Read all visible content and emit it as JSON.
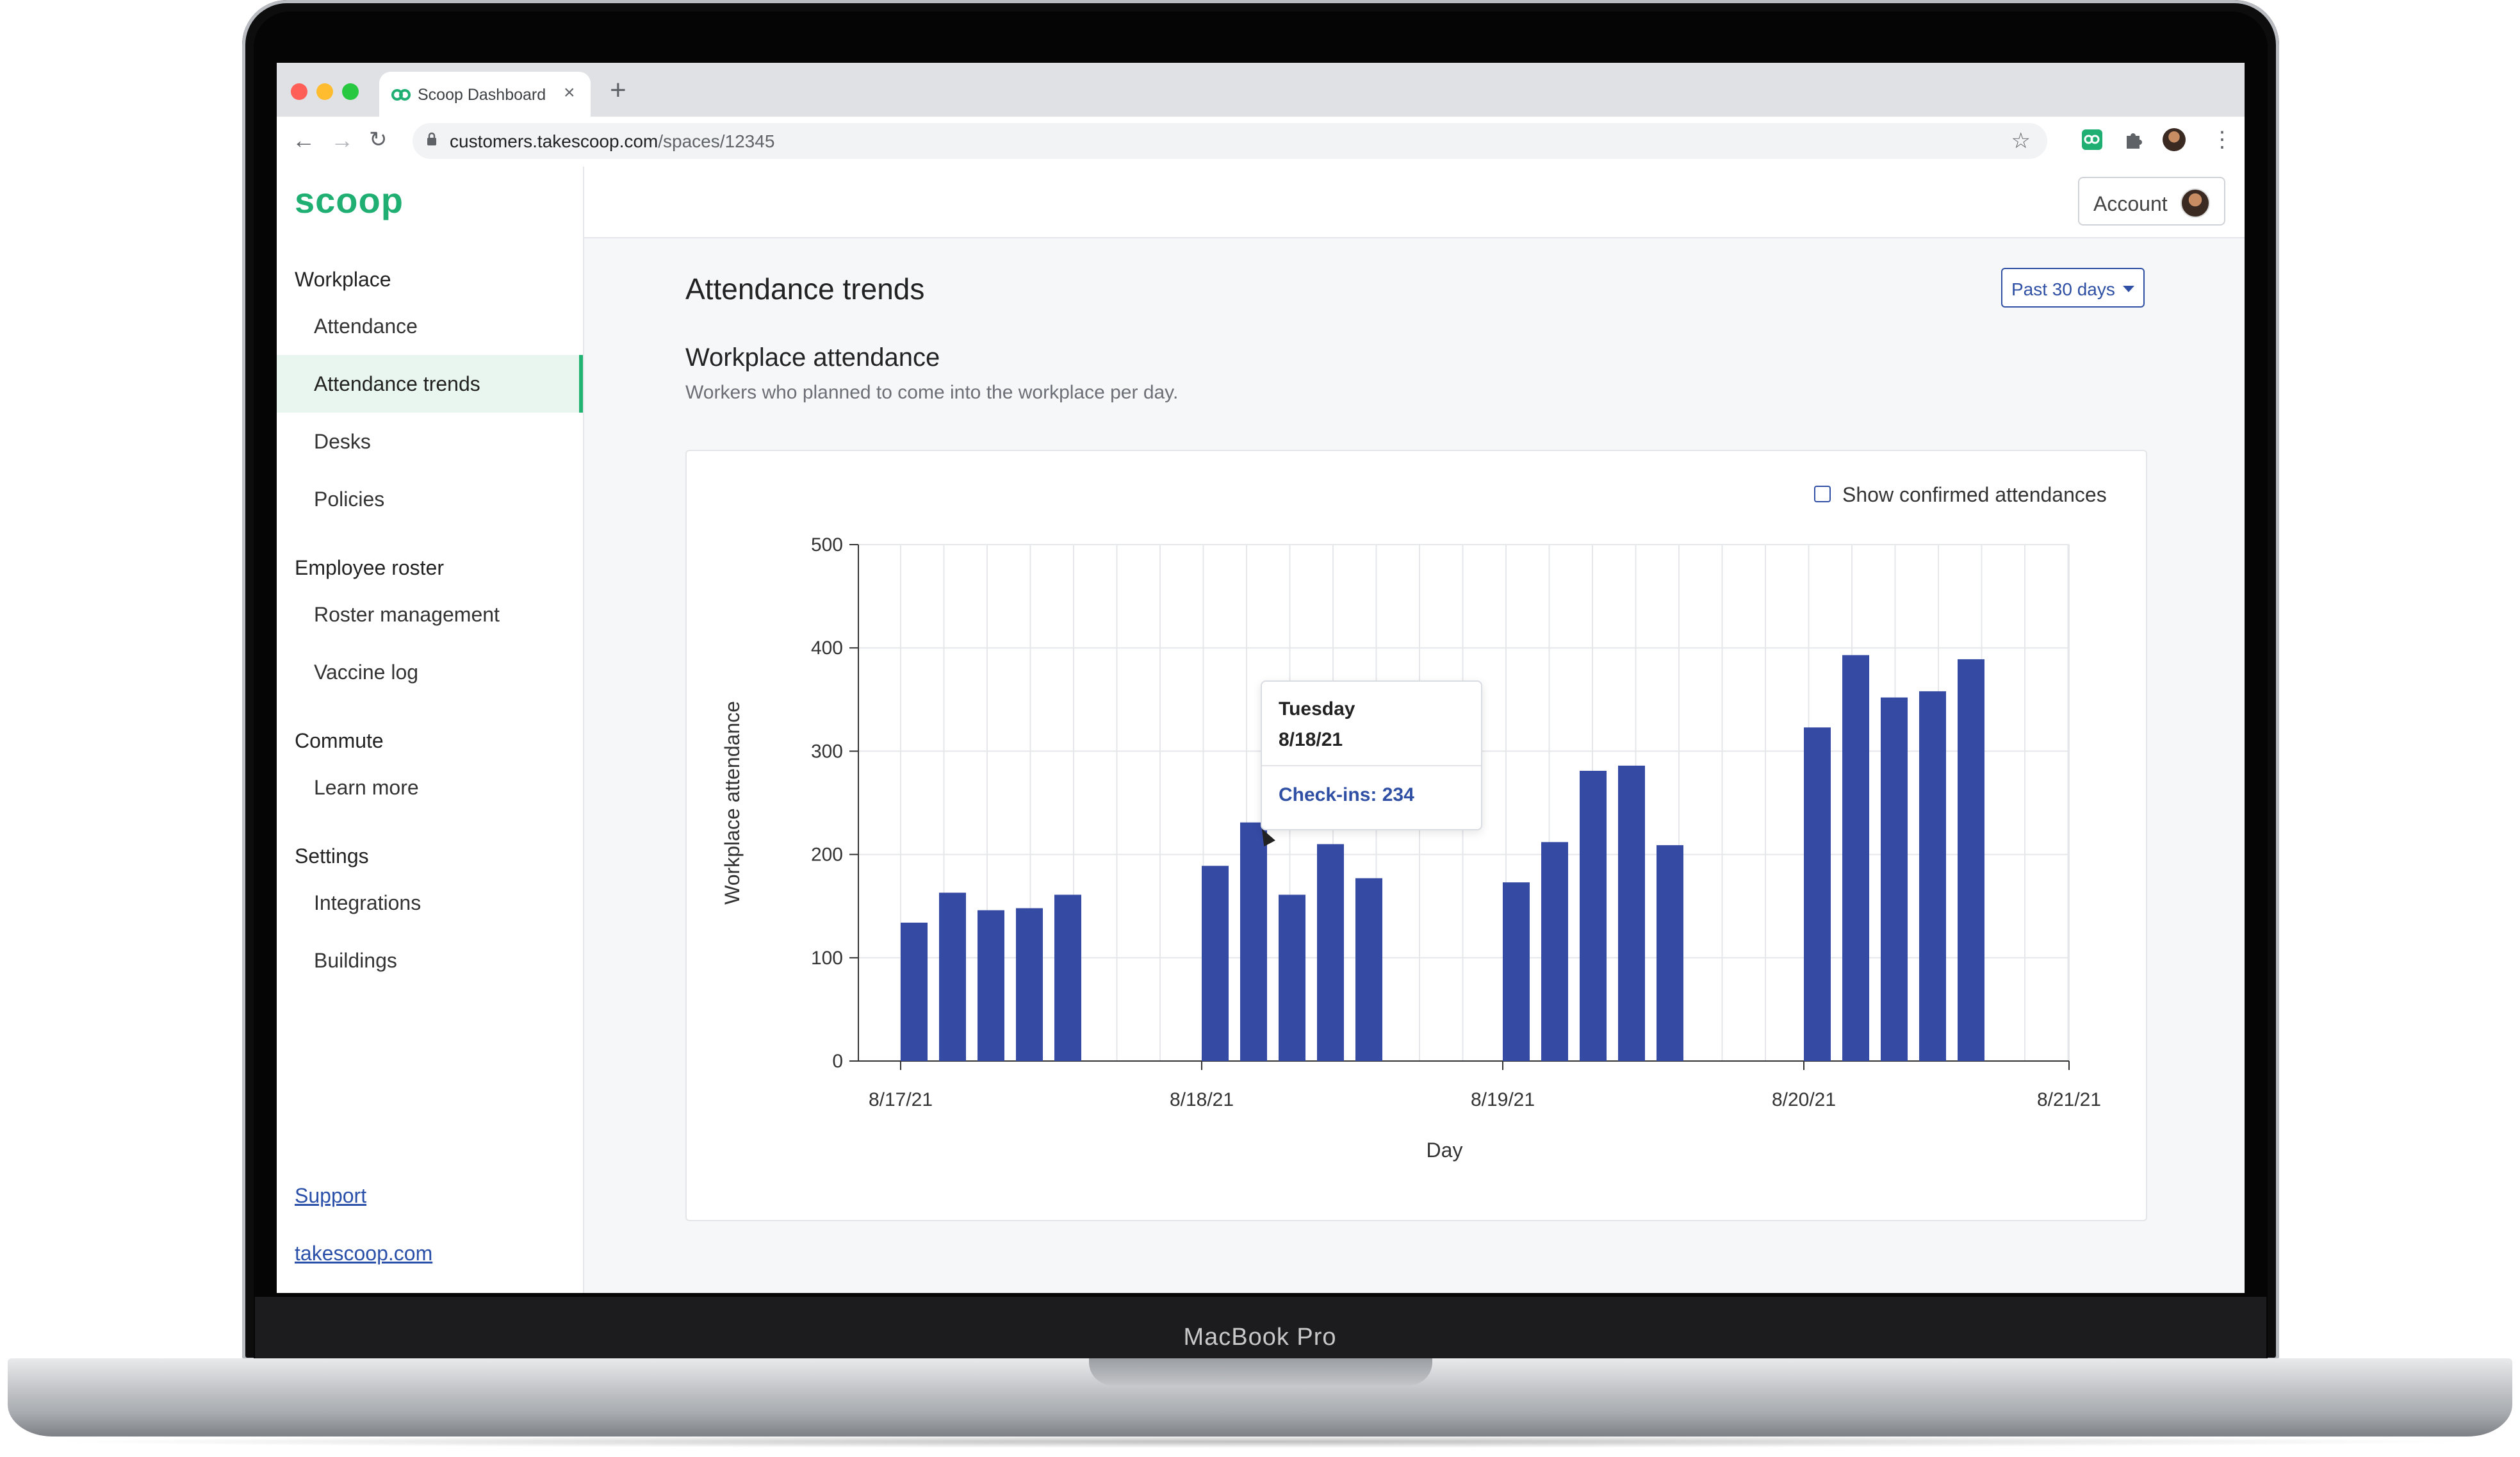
{
  "device": {
    "label": "MacBook Pro"
  },
  "browser": {
    "tab_title": "Scoop Dashboard",
    "url_host": "customers.takescoop.com",
    "url_path": "/spaces/12345",
    "icons": [
      "back-icon",
      "forward-icon",
      "reload-icon",
      "lock-icon",
      "star-icon",
      "extension-scoop-icon",
      "puzzle-icon",
      "profile-icon",
      "menu-icon"
    ]
  },
  "sidebar": {
    "logo": "scoop",
    "sections": [
      {
        "title": "Workplace",
        "items": [
          "Attendance",
          "Attendance trends",
          "Desks",
          "Policies"
        ]
      },
      {
        "title": "Employee roster",
        "items": [
          "Roster management",
          "Vaccine log"
        ]
      },
      {
        "title": "Commute",
        "items": [
          "Learn more"
        ]
      },
      {
        "title": "Settings",
        "items": [
          "Integrations",
          "Buildings"
        ]
      }
    ],
    "active_item": "Attendance trends",
    "links": [
      "Support",
      "takescoop.com"
    ]
  },
  "topbar": {
    "account_label": "Account"
  },
  "page": {
    "title": "Attendance trends",
    "range_label": "Past 30 days",
    "section_title": "Workplace attendance",
    "section_subtitle": "Workers who planned to come into the workplace per day.",
    "checkbox_label": "Show confirmed attendances",
    "checkbox_checked": false
  },
  "tooltip": {
    "day": "Tuesday",
    "date": "8/18/21",
    "value_text": "Check-ins: 234"
  },
  "colors": {
    "brand_green": "#1faf72",
    "bar_blue": "#354aa3",
    "accent_blue": "#2e4fa3"
  },
  "chart_data": {
    "type": "bar",
    "xlabel": "Day",
    "ylabel": "Workplace attendance",
    "ylim": [
      0,
      500
    ],
    "yticks": [
      0,
      100,
      200,
      300,
      400,
      500
    ],
    "xticks": [
      "8/17/21",
      "8/18/21",
      "8/19/21",
      "8/20/21",
      "8/21/21"
    ],
    "grid": true,
    "series": [
      {
        "values_by_day": [
          {
            "day": "8/17/21",
            "bars": [
              134,
              163,
              146,
              148,
              161
            ]
          },
          {
            "day": "8/18/21",
            "bars": [
              189,
              231,
              161,
              210,
              177
            ]
          },
          {
            "day": "8/19/21",
            "bars": [
              173,
              212,
              281,
              286,
              209
            ]
          },
          {
            "day": "8/20/21",
            "bars": [
              323,
              393,
              352,
              358,
              389
            ]
          }
        ]
      }
    ]
  }
}
